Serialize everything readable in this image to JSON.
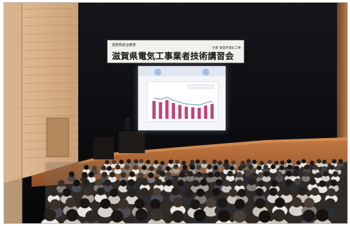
{
  "banner": {
    "small_left": "滋賀県総合教育",
    "main_text": "滋賀県電気工事業者技術講習会",
    "small_right": "主催 滋賀県電気工事"
  },
  "slide": {
    "legend_text": "スライド資料",
    "bar_heights": [
      0.62,
      0.58,
      0.65,
      0.55,
      0.48,
      0.42,
      0.4,
      0.38,
      0.46,
      0.52
    ],
    "bar_color": "#c0437a",
    "line_color": "#4a7fc1"
  },
  "colors": {
    "stage_wall": "#0c0c10",
    "wood_panel": "#d9a97a",
    "stage_floor": "#b86c38",
    "seat": "#2b2622"
  }
}
